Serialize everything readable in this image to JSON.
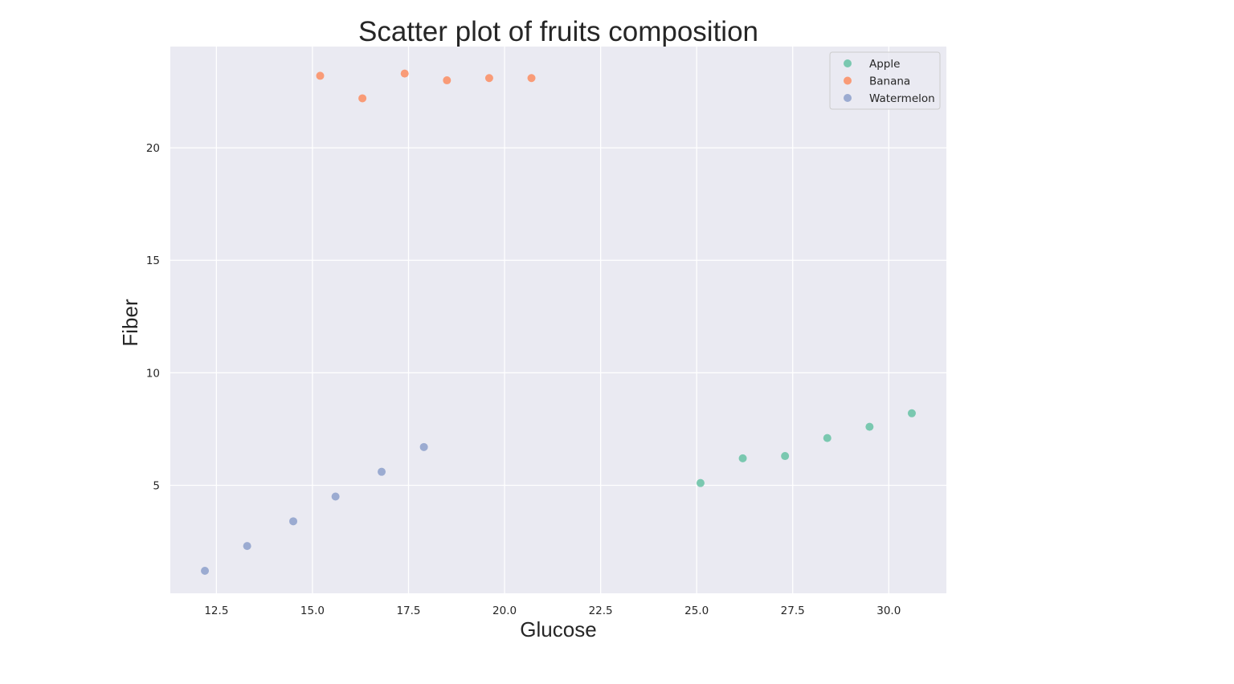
{
  "chart_data": {
    "type": "scatter",
    "title": "Scatter plot of fruits composition",
    "xlabel": "Glucose",
    "ylabel": "Fiber",
    "xlim": [
      11.3,
      31.5
    ],
    "ylim": [
      0.2,
      24.5
    ],
    "xticks": [
      12.5,
      15.0,
      17.5,
      20.0,
      22.5,
      25.0,
      27.5,
      30.0
    ],
    "yticks": [
      5,
      10,
      15,
      20
    ],
    "grid": true,
    "legend_position": "top-right",
    "background_color": "#eaeaf2",
    "grid_color": "#ffffff",
    "series": [
      {
        "name": "Apple",
        "color": "#66c2a5",
        "x": [
          25.1,
          26.2,
          27.3,
          28.4,
          29.5,
          30.6
        ],
        "y": [
          5.1,
          6.2,
          6.3,
          7.1,
          7.6,
          8.2
        ]
      },
      {
        "name": "Banana",
        "color": "#fc8d62",
        "x": [
          15.2,
          16.3,
          17.4,
          18.5,
          19.6,
          20.7
        ],
        "y": [
          23.2,
          22.2,
          23.3,
          23.0,
          23.1,
          23.1
        ]
      },
      {
        "name": "Watermelon",
        "color": "#8da0cb",
        "x": [
          12.2,
          13.3,
          14.5,
          15.6,
          16.8,
          17.9
        ],
        "y": [
          1.2,
          2.3,
          3.4,
          4.5,
          5.6,
          6.7
        ]
      }
    ]
  }
}
